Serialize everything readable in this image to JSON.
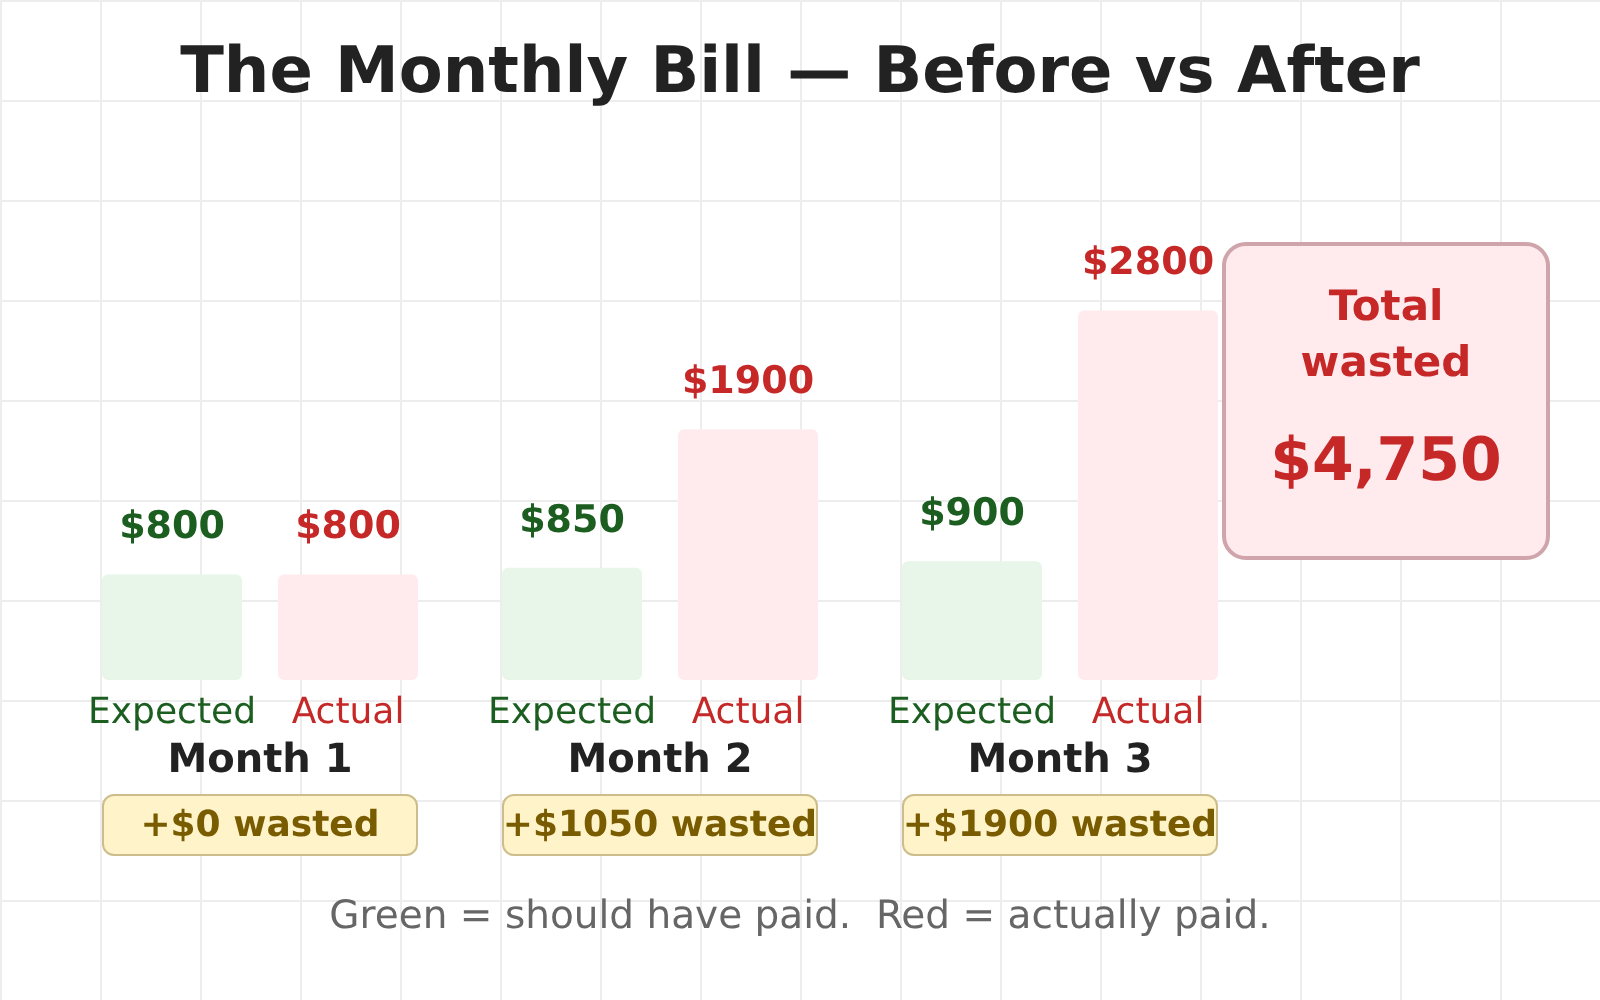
{
  "chart_data": {
    "type": "bar",
    "title": "The Monthly Bill — Before vs After",
    "categories": [
      "Month 1",
      "Month 2",
      "Month 3"
    ],
    "series": [
      {
        "name": "Expected",
        "color": "#e8f5e9",
        "values": [
          800,
          850,
          900
        ],
        "value_labels": [
          "$800",
          "$850",
          "$900"
        ]
      },
      {
        "name": "Actual",
        "color": "#ffebee",
        "values": [
          800,
          1900,
          2800
        ],
        "value_labels": [
          "$800",
          "$1900",
          "$2800"
        ]
      }
    ],
    "annotations": [
      "+$0 wasted",
      "+$1050 wasted",
      "+$1900 wasted",
      "Total wasted",
      "$4,750",
      "Green = should have paid.  Red = actually paid."
    ]
  }
}
